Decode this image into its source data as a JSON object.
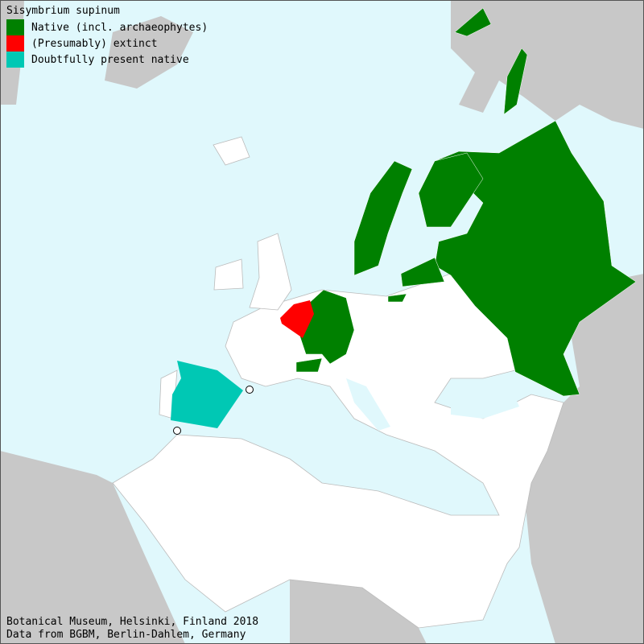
{
  "colors": {
    "sea": "#e0f8fc",
    "outside_land": "#c8c8c8",
    "land": "#ffffff",
    "native": "#008000",
    "extinct": "#ff0000",
    "doubtful": "#00c8b4"
  },
  "legend": {
    "title": "Sisymbrium supinum",
    "items": [
      {
        "label": "Native (incl. archaeophytes)",
        "color": "#008000"
      },
      {
        "label": "(Presumably) extinct",
        "color": "#ff0000"
      },
      {
        "label": "Doubtfully present native",
        "color": "#00c8b4"
      }
    ]
  },
  "footer": {
    "line1": "Botanical Museum, Helsinki, Finland 2018",
    "line2": "Data from BGBM, Berlin-Dahlem, Germany"
  }
}
